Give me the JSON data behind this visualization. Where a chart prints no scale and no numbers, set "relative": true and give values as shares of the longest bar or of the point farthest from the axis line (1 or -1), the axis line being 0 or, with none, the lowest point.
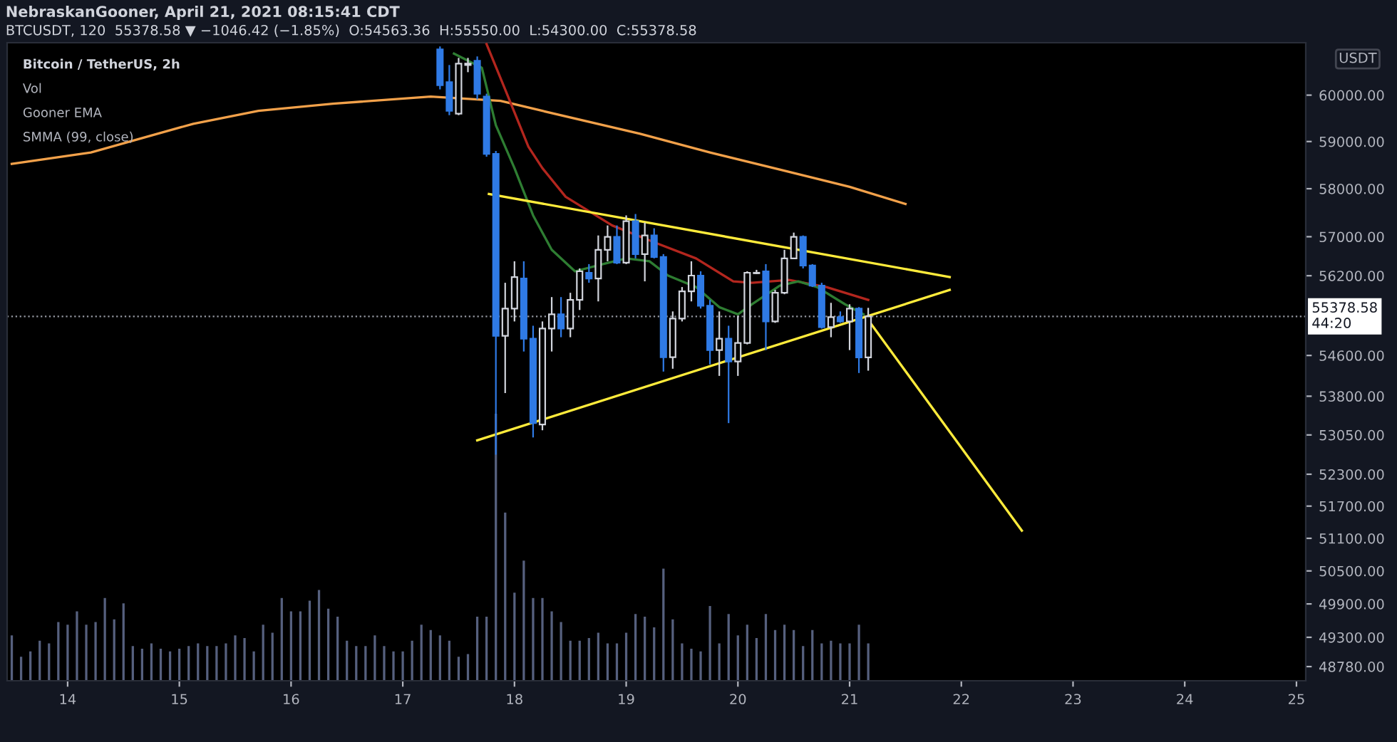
{
  "chart_data": [
    {
      "type": "candlestick",
      "title": "NebraskanGooner, April 21, 2021 08:15:41 CDT",
      "subtitle": "BTCUSDT, 120  55378.58 ▼ −1046.42 (−1.85%)  O:54563.36  H:55550.00  L:54300.00  C:55378.58",
      "ylabel": "USDT",
      "annotations": [
        "Bitcoin / TetherUS, 2h",
        "Vol",
        "Gooner EMA",
        "SMMA (99, close)"
      ],
      "x": [
        "2021-04-17T08:00",
        "2021-04-17T10:00",
        "2021-04-17T12:00",
        "2021-04-17T14:00",
        "2021-04-17T16:00",
        "2021-04-17T18:00",
        "2021-04-17T20:00",
        "2021-04-17T22:00",
        "2021-04-18T00:00",
        "2021-04-18T02:00",
        "2021-04-18T04:00",
        "2021-04-18T06:00",
        "2021-04-18T08:00",
        "2021-04-18T10:00",
        "2021-04-18T12:00",
        "2021-04-18T14:00",
        "2021-04-18T16:00",
        "2021-04-18T18:00",
        "2021-04-18T20:00",
        "2021-04-18T22:00",
        "2021-04-19T00:00",
        "2021-04-19T02:00",
        "2021-04-19T04:00",
        "2021-04-19T06:00",
        "2021-04-19T08:00",
        "2021-04-19T10:00",
        "2021-04-19T12:00",
        "2021-04-19T14:00",
        "2021-04-19T16:00",
        "2021-04-19T18:00",
        "2021-04-19T20:00",
        "2021-04-19T22:00",
        "2021-04-20T00:00",
        "2021-04-20T02:00",
        "2021-04-20T04:00",
        "2021-04-20T06:00",
        "2021-04-20T08:00",
        "2021-04-20T10:00",
        "2021-04-20T12:00",
        "2021-04-20T14:00",
        "2021-04-20T16:00",
        "2021-04-20T18:00",
        "2021-04-20T20:00",
        "2021-04-20T22:00",
        "2021-04-21T00:00",
        "2021-04-21T02:00",
        "2021-04-21T04:00"
      ],
      "ohlc": [
        [
          61004,
          61068,
          60125,
          60218
        ],
        [
          60281,
          60658,
          59566,
          59659
        ],
        [
          59597,
          60815,
          59566,
          60689
        ],
        [
          60658,
          60815,
          60501,
          60690
        ],
        [
          60752,
          60847,
          59907,
          60031
        ],
        [
          59969,
          60031,
          58676,
          58737
        ],
        [
          58737,
          58798,
          52673,
          54990
        ],
        [
          54990,
          56057,
          53861,
          55536
        ],
        [
          55536,
          56495,
          55277,
          56173
        ],
        [
          56144,
          56495,
          54678,
          54933
        ],
        [
          54933,
          55191,
          53002,
          53278
        ],
        [
          53251,
          55277,
          53140,
          55134
        ],
        [
          55134,
          55767,
          54678,
          55420
        ],
        [
          55420,
          55767,
          54962,
          55134
        ],
        [
          55134,
          55854,
          54962,
          55709
        ],
        [
          55709,
          56349,
          55507,
          56290
        ],
        [
          56261,
          56437,
          56057,
          56144
        ],
        [
          56144,
          57026,
          55680,
          56730
        ],
        [
          56730,
          57233,
          56495,
          56996
        ],
        [
          56996,
          57233,
          56437,
          56466
        ],
        [
          56466,
          57442,
          56437,
          57322
        ],
        [
          57322,
          57471,
          56554,
          56642
        ],
        [
          56642,
          57293,
          56086,
          57026
        ],
        [
          57026,
          57174,
          56554,
          56583
        ],
        [
          56583,
          56642,
          54282,
          54564
        ],
        [
          54564,
          55478,
          54338,
          55334
        ],
        [
          55334,
          55970,
          55277,
          55883
        ],
        [
          55883,
          56495,
          55680,
          56203
        ],
        [
          56203,
          56290,
          55536,
          55593
        ],
        [
          55593,
          55709,
          54423,
          54706
        ],
        [
          54706,
          55478,
          54197,
          54933
        ],
        [
          54933,
          55191,
          53278,
          54480
        ],
        [
          54480,
          55392,
          54197,
          54848
        ],
        [
          54848,
          56290,
          54820,
          56261
        ],
        [
          56250,
          56320,
          56232,
          56261
        ],
        [
          56290,
          56437,
          54706,
          55277
        ],
        [
          55277,
          55912,
          55249,
          55854
        ],
        [
          55854,
          56730,
          55825,
          56554
        ],
        [
          56554,
          57085,
          56554,
          56996
        ],
        [
          56996,
          57026,
          56349,
          56408
        ],
        [
          56408,
          56437,
          55970,
          55999
        ],
        [
          55999,
          56057,
          55134,
          55163
        ],
        [
          55163,
          55651,
          54962,
          55363
        ],
        [
          55363,
          55478,
          55249,
          55277
        ],
        [
          55277,
          55622,
          54706,
          55536
        ],
        [
          55536,
          55565,
          54254,
          54563.36
        ],
        [
          54563.36,
          55550,
          54300,
          55378.58
        ]
      ],
      "colors": [
        "#2f7ae5",
        "#2f7ae5",
        "#d1d4dc",
        "#d1d4dc",
        "#2f7ae5",
        "#2f7ae5",
        "#2f7ae5",
        "#d1d4dc",
        "#d1d4dc",
        "#2f7ae5",
        "#2f7ae5",
        "#d1d4dc",
        "#d1d4dc",
        "#2f7ae5",
        "#d1d4dc",
        "#d1d4dc",
        "#2f7ae5",
        "#d1d4dc",
        "#d1d4dc",
        "#2f7ae5",
        "#d1d4dc",
        "#2f7ae5",
        "#d1d4dc",
        "#2f7ae5",
        "#2f7ae5",
        "#d1d4dc",
        "#d1d4dc",
        "#d1d4dc",
        "#2f7ae5",
        "#2f7ae5",
        "#d1d4dc",
        "#2f7ae5",
        "#d1d4dc",
        "#d1d4dc",
        "#d1d4dc",
        "#2f7ae5",
        "#d1d4dc",
        "#d1d4dc",
        "#d1d4dc",
        "#2f7ae5",
        "#2f7ae5",
        "#2f7ae5",
        "#d1d4dc",
        "#2f7ae5",
        "#d1d4dc",
        "#2f7ae5",
        "#d1d4dc"
      ],
      "series": [
        {
          "type": "line",
          "color": "#f2a14a",
          "x": [
            "2021-04-13T12:00",
            "2021-04-14T05:00",
            "2021-04-15T03:00",
            "2021-04-15T17:00",
            "2021-04-16T09:00",
            "2021-04-17T06:00",
            "2021-04-17T21:00",
            "2021-04-18T06:00",
            "2021-04-19T03:00",
            "2021-04-19T18:00",
            "2021-04-20T09:00",
            "2021-04-21T00:00",
            "2021-04-21T12:00"
          ],
          "values": [
            58524,
            58767,
            59381,
            59659,
            59814,
            59969,
            59876,
            59659,
            59165,
            58767,
            58403,
            58040,
            57681
          ]
        },
        {
          "type": "line",
          "color": "#b3261e",
          "x": [
            "2021-04-17T18:00",
            "2021-04-17T22:00",
            "2021-04-18T03:00",
            "2021-04-18T06:00",
            "2021-04-18T11:00",
            "2021-04-18T21:00",
            "2021-04-19T07:00",
            "2021-04-19T15:00",
            "2021-04-19T23:00",
            "2021-04-20T03:00",
            "2021-04-20T11:00",
            "2021-04-20T19:00",
            "2021-04-21T04:00"
          ],
          "values": [
            61121,
            60125,
            58889,
            58433,
            57830,
            57233,
            56849,
            56554,
            56086,
            56057,
            56115,
            55970,
            55709
          ]
        },
        {
          "type": "line",
          "color": "#2e7d32",
          "x": [
            "2021-04-17T11:00",
            "2021-04-17T17:00",
            "2021-04-17T20:00",
            "2021-04-18T00:00",
            "2021-04-18T04:00",
            "2021-04-18T08:00",
            "2021-04-18T13:00",
            "2021-04-18T19:00",
            "2021-04-19T00:00",
            "2021-04-19T05:00",
            "2021-04-19T09:00",
            "2021-04-19T15:00",
            "2021-04-19T20:00",
            "2021-04-20T00:00",
            "2021-04-20T03:00",
            "2021-04-20T09:00",
            "2021-04-20T13:00",
            "2021-04-20T17:00",
            "2021-04-20T23:00",
            "2021-04-21T03:00"
          ],
          "values": [
            60910,
            60595,
            59350,
            58433,
            57442,
            56730,
            56290,
            56437,
            56554,
            56495,
            56203,
            55970,
            55564,
            55420,
            55622,
            55999,
            56086,
            55970,
            55622,
            55420
          ]
        },
        {
          "type": "line",
          "color": "#ffeb3b",
          "x": [
            "2021-04-17T18:30",
            "2021-04-21T21:30"
          ],
          "values": [
            57890,
            56173
          ]
        },
        {
          "type": "line",
          "color": "#ffeb3b",
          "x": [
            "2021-04-17T16:00",
            "2021-04-21T21:30"
          ],
          "values": [
            52947,
            55912
          ]
        },
        {
          "type": "line",
          "color": "#ffeb3b",
          "x": [
            "2021-04-21T04:00",
            "2021-04-22T13:00"
          ],
          "values": [
            55305,
            51243
          ]
        }
      ],
      "log": true,
      "xlim": [
        "2021-04-13T11:00",
        "2021-04-25T02:00"
      ],
      "xticks": [
        {
          "value": "2021-04-14",
          "label": "14"
        },
        {
          "value": "2021-04-15",
          "label": "15"
        },
        {
          "value": "2021-04-16",
          "label": "16"
        },
        {
          "value": "2021-04-17",
          "label": "17"
        },
        {
          "value": "2021-04-18",
          "label": "18"
        },
        {
          "value": "2021-04-19",
          "label": "19"
        },
        {
          "value": "2021-04-20",
          "label": "20"
        },
        {
          "value": "2021-04-21",
          "label": "21"
        },
        {
          "value": "2021-04-22",
          "label": "22"
        },
        {
          "value": "2021-04-23",
          "label": "23"
        },
        {
          "value": "2021-04-24",
          "label": "24"
        },
        {
          "value": "2021-04-25",
          "label": "25"
        }
      ],
      "ylim": [
        48530,
        61150
      ],
      "yticks": [
        {
          "value": 60000,
          "label": "60000.00"
        },
        {
          "value": 59000,
          "label": "59000.00"
        },
        {
          "value": 58000,
          "label": "58000.00"
        },
        {
          "value": 57000,
          "label": "57000.00"
        },
        {
          "value": 56200,
          "label": "56200.00"
        },
        {
          "value": 54600,
          "label": "54600.00"
        },
        {
          "value": 53800,
          "label": "53800.00"
        },
        {
          "value": 53050,
          "label": "53050.00"
        },
        {
          "value": 52300,
          "label": "52300.00"
        },
        {
          "value": 51700,
          "label": "51700.00"
        },
        {
          "value": 51100,
          "label": "51100.00"
        },
        {
          "value": 50500,
          "label": "50500.00"
        },
        {
          "value": 49900,
          "label": "49900.00"
        },
        {
          "value": 49300,
          "label": "49300.00"
        },
        {
          "value": 48780,
          "label": "48780.00"
        }
      ],
      "ref_lines": [
        {
          "axis": "y",
          "value": 55378.58,
          "label": "55378.58\n44:20",
          "color": "#9598a1",
          "line_style": "dotted"
        }
      ],
      "grid": false
    },
    {
      "type": "bar",
      "relative": true,
      "color": "#56607e",
      "xlim": [
        "2021-04-13T11:00",
        "2021-04-25T02:00"
      ],
      "x": [
        "2021-04-13T12:00",
        "2021-04-13T14:00",
        "2021-04-13T16:00",
        "2021-04-13T18:00",
        "2021-04-13T20:00",
        "2021-04-13T22:00",
        "2021-04-14T00:00",
        "2021-04-14T02:00",
        "2021-04-14T04:00",
        "2021-04-14T06:00",
        "2021-04-14T08:00",
        "2021-04-14T10:00",
        "2021-04-14T12:00",
        "2021-04-14T14:00",
        "2021-04-14T16:00",
        "2021-04-14T18:00",
        "2021-04-14T20:00",
        "2021-04-14T22:00",
        "2021-04-15T00:00",
        "2021-04-15T02:00",
        "2021-04-15T04:00",
        "2021-04-15T06:00",
        "2021-04-15T08:00",
        "2021-04-15T10:00",
        "2021-04-15T12:00",
        "2021-04-15T14:00",
        "2021-04-15T16:00",
        "2021-04-15T18:00",
        "2021-04-15T20:00",
        "2021-04-15T22:00",
        "2021-04-16T00:00",
        "2021-04-16T02:00",
        "2021-04-16T04:00",
        "2021-04-16T06:00",
        "2021-04-16T08:00",
        "2021-04-16T10:00",
        "2021-04-16T12:00",
        "2021-04-16T14:00",
        "2021-04-16T16:00",
        "2021-04-16T18:00",
        "2021-04-16T20:00",
        "2021-04-16T22:00",
        "2021-04-17T00:00",
        "2021-04-17T02:00",
        "2021-04-17T04:00",
        "2021-04-17T06:00",
        "2021-04-17T08:00",
        "2021-04-17T10:00",
        "2021-04-17T12:00",
        "2021-04-17T14:00",
        "2021-04-17T16:00",
        "2021-04-17T18:00",
        "2021-04-17T20:00",
        "2021-04-17T22:00",
        "2021-04-18T00:00",
        "2021-04-18T02:00",
        "2021-04-18T04:00",
        "2021-04-18T06:00",
        "2021-04-18T08:00",
        "2021-04-18T10:00",
        "2021-04-18T12:00",
        "2021-04-18T14:00",
        "2021-04-18T16:00",
        "2021-04-18T18:00",
        "2021-04-18T20:00",
        "2021-04-18T22:00",
        "2021-04-19T00:00",
        "2021-04-19T02:00",
        "2021-04-19T04:00",
        "2021-04-19T06:00",
        "2021-04-19T08:00",
        "2021-04-19T10:00",
        "2021-04-19T12:00",
        "2021-04-19T14:00",
        "2021-04-19T16:00",
        "2021-04-19T18:00",
        "2021-04-19T20:00",
        "2021-04-19T22:00",
        "2021-04-20T00:00",
        "2021-04-20T02:00",
        "2021-04-20T04:00",
        "2021-04-20T06:00",
        "2021-04-20T08:00",
        "2021-04-20T10:00",
        "2021-04-20T12:00",
        "2021-04-20T14:00",
        "2021-04-20T16:00",
        "2021-04-20T18:00",
        "2021-04-20T20:00",
        "2021-04-20T22:00",
        "2021-04-21T00:00",
        "2021-04-21T02:00",
        "2021-04-21T04:00"
      ],
      "values": [
        0.17,
        0.09,
        0.11,
        0.15,
        0.14,
        0.22,
        0.21,
        0.26,
        0.21,
        0.22,
        0.31,
        0.23,
        0.29,
        0.13,
        0.12,
        0.14,
        0.12,
        0.11,
        0.12,
        0.13,
        0.14,
        0.13,
        0.13,
        0.14,
        0.17,
        0.16,
        0.11,
        0.21,
        0.18,
        0.31,
        0.26,
        0.26,
        0.3,
        0.34,
        0.27,
        0.24,
        0.15,
        0.13,
        0.13,
        0.17,
        0.13,
        0.11,
        0.11,
        0.15,
        0.21,
        0.19,
        0.17,
        0.15,
        0.09,
        0.1,
        0.24,
        0.24,
        1.0,
        0.63,
        0.33,
        0.45,
        0.31,
        0.31,
        0.26,
        0.22,
        0.15,
        0.15,
        0.16,
        0.18,
        0.14,
        0.14,
        0.18,
        0.25,
        0.24,
        0.2,
        0.42,
        0.23,
        0.14,
        0.12,
        0.11,
        0.28,
        0.14,
        0.25,
        0.17,
        0.21,
        0.16,
        0.25,
        0.19,
        0.21,
        0.19,
        0.13,
        0.19,
        0.14,
        0.15,
        0.14,
        0.14,
        0.21,
        0.14
      ]
    }
  ]
}
